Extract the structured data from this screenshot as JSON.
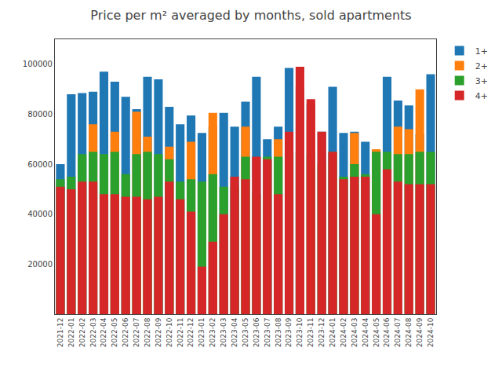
{
  "chart_data": {
    "type": "bar",
    "title": "Price per m² averaged by months, sold apartments",
    "categories": [
      "2021-12",
      "2022-01",
      "2022-02",
      "2022-03",
      "2022-04",
      "2022-05",
      "2022-06",
      "2022-07",
      "2022-08",
      "2022-09",
      "2022-10",
      "2022-11",
      "2022-12",
      "2023-01",
      "2023-02",
      "2023-03",
      "2023-04",
      "2023-05",
      "2023-06",
      "2023-07",
      "2023-08",
      "2023-09",
      "2023-10",
      "2023-11",
      "2023-12",
      "2024-01",
      "2024-02",
      "2024-03",
      "2024-04",
      "2024-05",
      "2024-06",
      "2024-07",
      "2024-08",
      "2024-09",
      "2024-10"
    ],
    "series": [
      {
        "name": "1+",
        "color": "#1f77b4",
        "values": [
          60000,
          88000,
          88500,
          89000,
          97000,
          93000,
          87000,
          82000,
          95000,
          94000,
          83000,
          76000,
          79500,
          72500,
          75000,
          80500,
          75000,
          85000,
          95000,
          70000,
          75000,
          98500,
          91000,
          84000,
          73000,
          91000,
          72500,
          73000,
          69000,
          65500,
          95000,
          85500,
          83500,
          72000,
          96000
        ]
      },
      {
        "name": "2+",
        "color": "#ff7f0e",
        "values": [
          0,
          0,
          0,
          76000,
          0,
          73000,
          0,
          81000,
          71000,
          0,
          67000,
          0,
          69000,
          0,
          80500,
          0,
          0,
          75000,
          0,
          0,
          70000,
          0,
          0,
          78000,
          0,
          0,
          0,
          72500,
          0,
          66000,
          0,
          75000,
          74000,
          90000,
          0
        ]
      },
      {
        "name": "3+",
        "color": "#2ca02c",
        "values": [
          54000,
          55000,
          64000,
          65000,
          64000,
          65000,
          56000,
          64000,
          65000,
          64000,
          62000,
          53000,
          54000,
          53000,
          56000,
          51000,
          51000,
          63000,
          48000,
          63000,
          63000,
          65000,
          65000,
          64000,
          60000,
          65000,
          55000,
          60000,
          56000,
          65000,
          65000,
          64000,
          64000,
          65000,
          65000
        ]
      },
      {
        "name": "4+",
        "color": "#d62728",
        "values": [
          51000,
          50000,
          53000,
          53000,
          48000,
          48000,
          47000,
          47000,
          46000,
          47000,
          53000,
          46000,
          41000,
          19000,
          29000,
          40000,
          55000,
          54000,
          63000,
          62000,
          48000,
          73000,
          99000,
          86000,
          73000,
          65000,
          54000,
          55000,
          55000,
          40000,
          58000,
          53000,
          52000,
          52000,
          52000
        ]
      }
    ],
    "ylim": [
      0,
      110000
    ],
    "yticks": [
      20000,
      40000,
      60000,
      80000,
      100000
    ],
    "stacked": false,
    "grid": false,
    "legend": "upper right"
  }
}
